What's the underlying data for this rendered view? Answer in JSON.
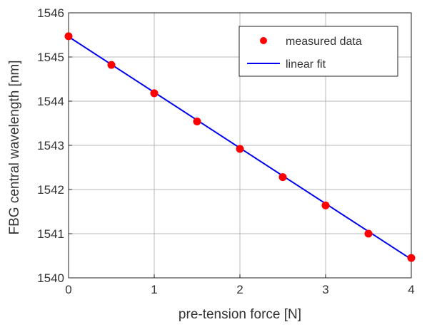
{
  "chart_data": {
    "type": "scatter",
    "xlabel": "pre-tension force [N]",
    "ylabel": "FBG central wavelength [nm]",
    "xlim": [
      0,
      4
    ],
    "ylim": [
      1540,
      1546
    ],
    "x_ticks": [
      0,
      1,
      2,
      3,
      4
    ],
    "y_ticks": [
      1540,
      1541,
      1542,
      1543,
      1544,
      1545,
      1546
    ],
    "grid": true,
    "legend_position": "top-right",
    "series": [
      {
        "name": "measured data",
        "kind": "points",
        "color": "#ff0000",
        "x": [
          0,
          0.5,
          1,
          1.5,
          2,
          2.5,
          3,
          3.5,
          4
        ],
        "y": [
          1545.47,
          1544.82,
          1544.18,
          1543.54,
          1542.92,
          1542.28,
          1541.64,
          1541.0,
          1540.45
        ]
      },
      {
        "name": "linear fit",
        "kind": "line",
        "color": "#0000ee",
        "x": [
          0,
          4
        ],
        "y": [
          1545.46,
          1540.42
        ]
      }
    ]
  }
}
